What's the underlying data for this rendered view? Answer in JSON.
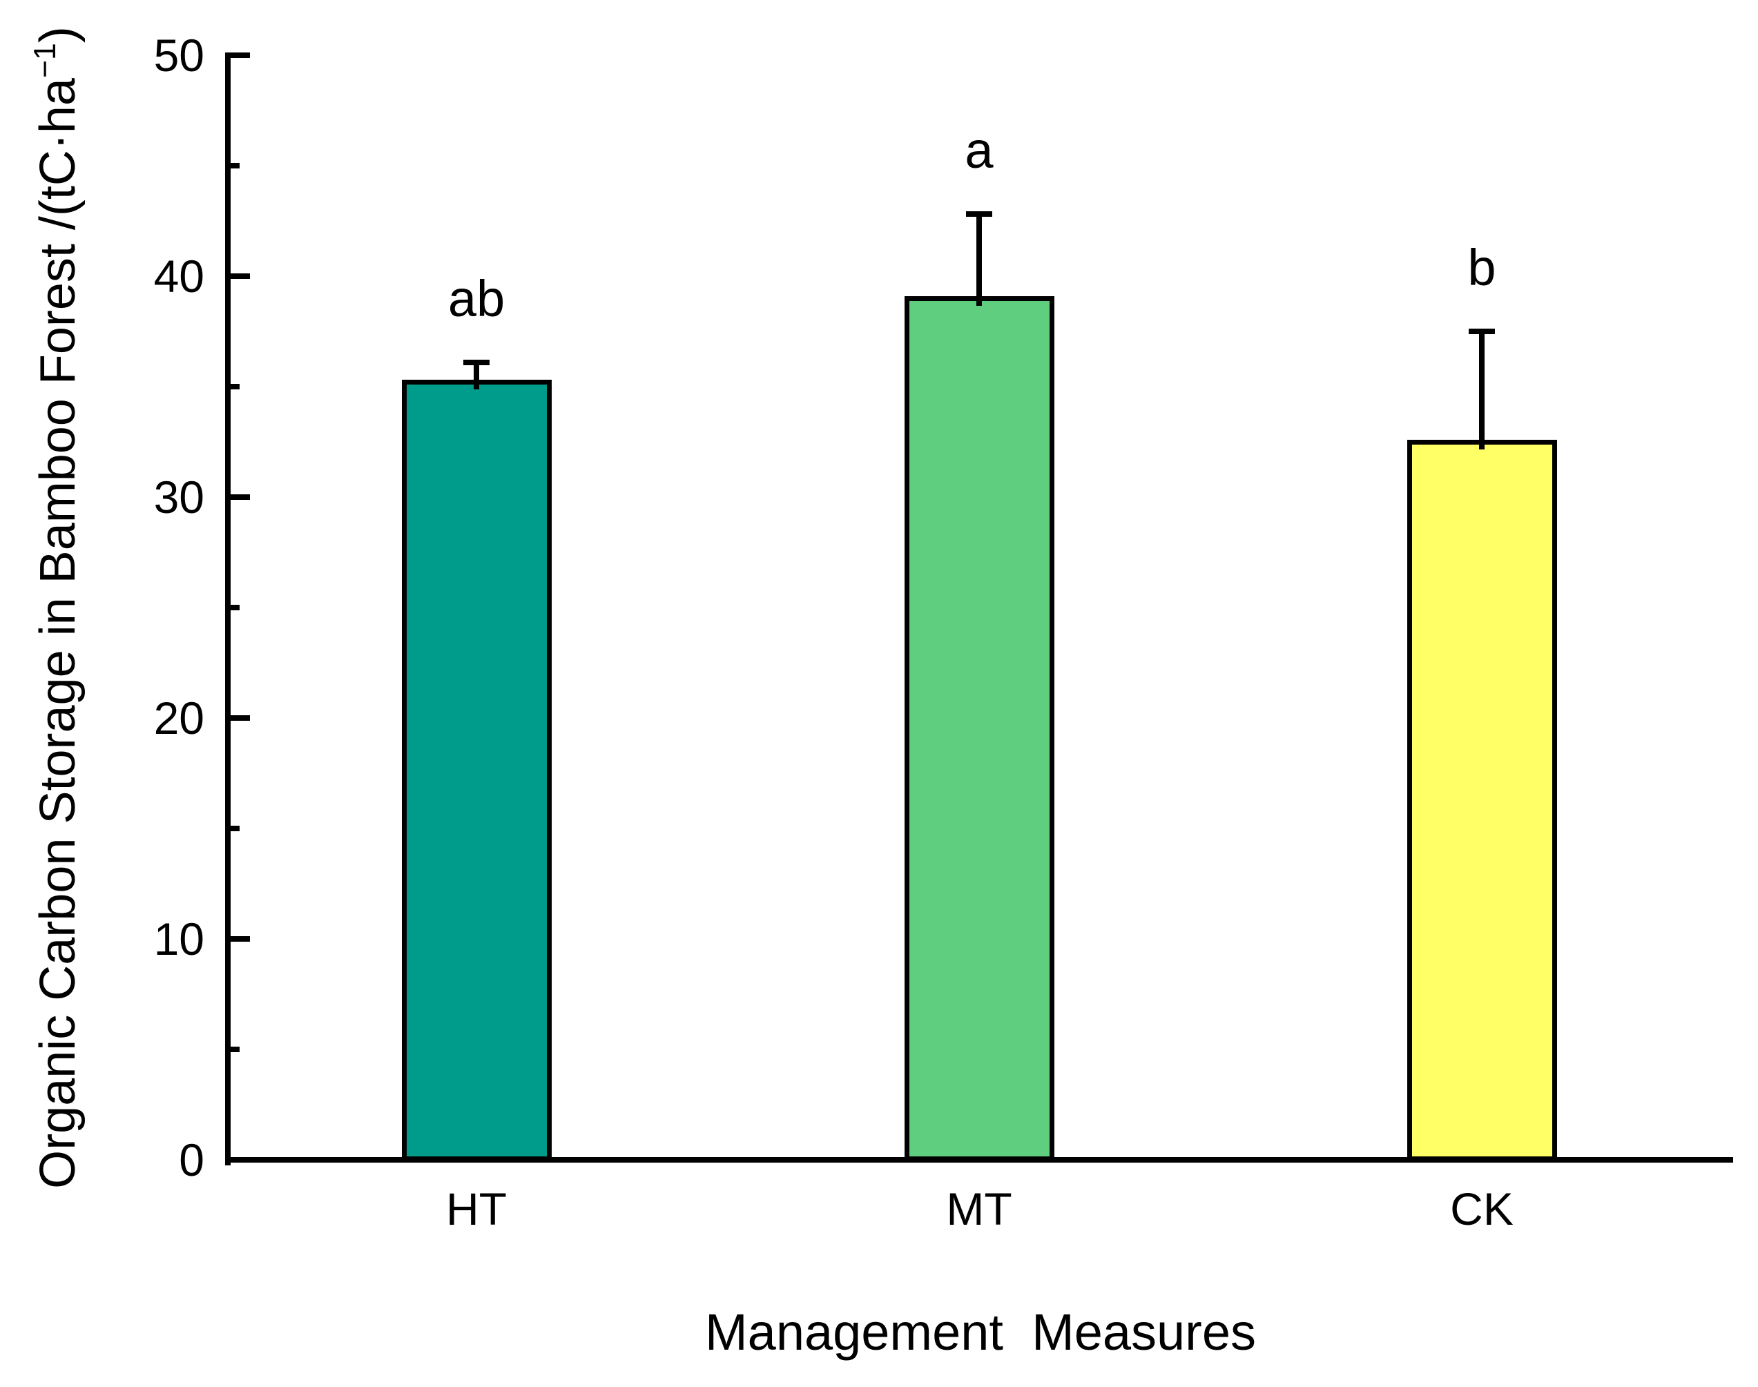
{
  "chart_data": {
    "type": "bar",
    "title": "",
    "categories": [
      "HT",
      "MT",
      "CK"
    ],
    "values": [
      35.3,
      39.1,
      32.6
    ],
    "errors_upper": [
      0.8,
      3.7,
      4.9
    ],
    "sig_letters": [
      "ab",
      "a",
      "b"
    ],
    "bar_colors": [
      "#009C8B",
      "#5FCE7E",
      "#FFFF66"
    ],
    "bar_border_color": "#000000",
    "xlabel": "Management  Measures",
    "ylabel": "Organic Carbon Storage in Bamboo Forest /(tC·ha⁻¹)",
    "ylabel_main": "Organic Carbon Storage in Bamboo Forest /(tC·ha",
    "ylabel_sup": "−1",
    "ylabel_close": ")",
    "ylim": [
      0,
      50
    ],
    "y_major_ticks": [
      0,
      10,
      20,
      30,
      40,
      50
    ],
    "y_minor_ticks": [
      5,
      15,
      25,
      35,
      45
    ],
    "grid": false,
    "legend": false,
    "error_bar_direction": "upper-only",
    "axis_color": "#000000",
    "background_color": "#FFFFFF"
  }
}
